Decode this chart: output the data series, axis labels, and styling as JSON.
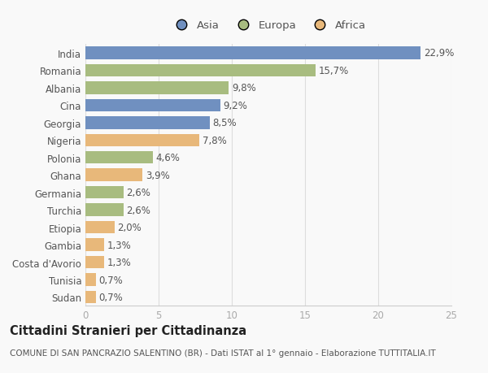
{
  "countries": [
    "India",
    "Romania",
    "Albania",
    "Cina",
    "Georgia",
    "Nigeria",
    "Polonia",
    "Ghana",
    "Germania",
    "Turchia",
    "Etiopia",
    "Gambia",
    "Costa d'Avorio",
    "Tunisia",
    "Sudan"
  ],
  "values": [
    22.9,
    15.7,
    9.8,
    9.2,
    8.5,
    7.8,
    4.6,
    3.9,
    2.6,
    2.6,
    2.0,
    1.3,
    1.3,
    0.7,
    0.7
  ],
  "labels": [
    "22,9%",
    "15,7%",
    "9,8%",
    "9,2%",
    "8,5%",
    "7,8%",
    "4,6%",
    "3,9%",
    "2,6%",
    "2,6%",
    "2,0%",
    "1,3%",
    "1,3%",
    "0,7%",
    "0,7%"
  ],
  "continents": [
    "Asia",
    "Europa",
    "Europa",
    "Asia",
    "Asia",
    "Africa",
    "Europa",
    "Africa",
    "Europa",
    "Europa",
    "Africa",
    "Africa",
    "Africa",
    "Africa",
    "Africa"
  ],
  "colors": {
    "Asia": "#7090c0",
    "Europa": "#a8bc80",
    "Africa": "#e8b87a"
  },
  "legend_order": [
    "Asia",
    "Europa",
    "Africa"
  ],
  "title": "Cittadini Stranieri per Cittadinanza",
  "subtitle": "COMUNE DI SAN PANCRAZIO SALENTINO (BR) - Dati ISTAT al 1° gennaio - Elaborazione TUTTITALIA.IT",
  "xlim": [
    0,
    25
  ],
  "xticks": [
    0,
    5,
    10,
    15,
    20,
    25
  ],
  "background_color": "#f9f9f9",
  "bar_height": 0.72,
  "label_fontsize": 8.5,
  "title_fontsize": 10.5,
  "subtitle_fontsize": 7.5,
  "tick_fontsize": 8.5,
  "legend_fontsize": 9.5,
  "text_color": "#555555",
  "title_color": "#222222",
  "grid_color": "#dddddd",
  "label_color": "#555555"
}
